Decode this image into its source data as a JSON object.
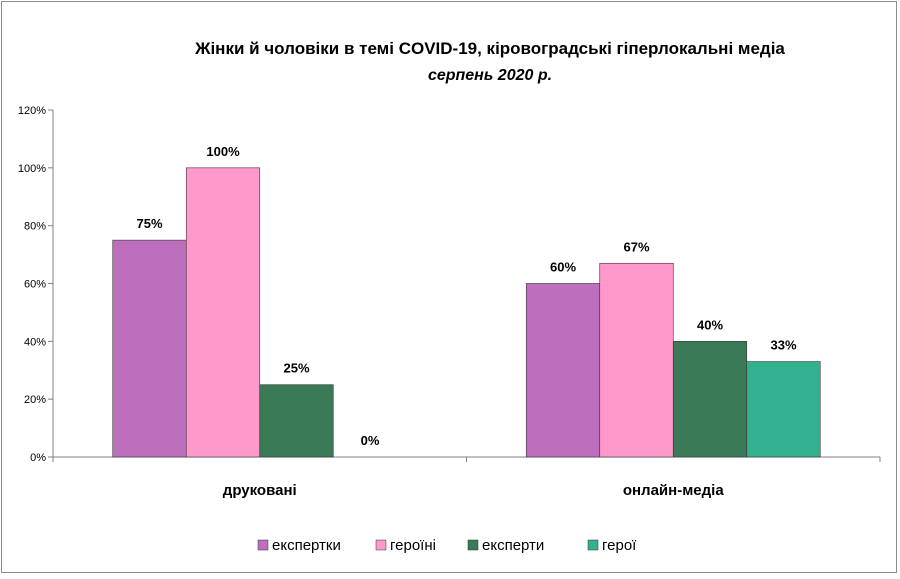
{
  "chart_data": {
    "type": "bar",
    "title": "Жінки й чоловіки  в темі COVID-19, кіровоградські  гіперлокальні  медіа",
    "subtitle": "серпень 2020 р.",
    "categories": [
      "друковані",
      "онлайн-медіа"
    ],
    "series": [
      {
        "name": "експертки",
        "color": "#bd6fbd",
        "values": [
          75,
          60
        ],
        "labels": [
          "75%",
          "60%"
        ]
      },
      {
        "name": "героїні",
        "color": "#ff99cc",
        "values": [
          100,
          67
        ],
        "labels": [
          "100%",
          "67%"
        ]
      },
      {
        "name": "експерти",
        "color": "#3b7a57",
        "values": [
          25,
          40
        ],
        "labels": [
          "25%",
          "40%"
        ]
      },
      {
        "name": "герої",
        "color": "#33b08f",
        "values": [
          0,
          33
        ],
        "labels": [
          "0%",
          "33%"
        ]
      }
    ],
    "yticks": [
      "0%",
      "20%",
      "40%",
      "60%",
      "80%",
      "100%",
      "120%"
    ],
    "ylim": [
      0,
      120
    ],
    "grid": false,
    "legend": "bottom"
  }
}
